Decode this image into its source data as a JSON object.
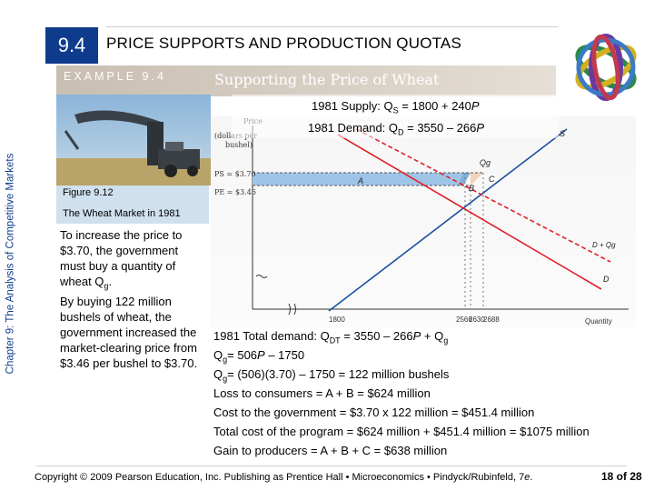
{
  "header": {
    "section": "9.4",
    "title": "PRICE SUPPORTS AND PRODUCTION QUOTAS",
    "example_label": "EXAMPLE 9.4",
    "example_title": "Supporting the Price of Wheat",
    "side_caption": "Chapter 9: The Analysis of Competitive Markets"
  },
  "equations": {
    "supply_prefix": "1981 Supply: Q",
    "supply_sub": "S",
    "supply_rest": " = 1800 + 240",
    "supply_var": "P",
    "demand_prefix": "1981 Demand: Q",
    "demand_sub": "D",
    "demand_rest": " = 3550 – 266",
    "demand_var": "P"
  },
  "figure": {
    "label": "Figure 9.12",
    "subtitle": "The Wheat Market in 1981"
  },
  "paragraphs": {
    "p1_main": "To increase the price to $3.70, the government must buy a quantity of wheat Q",
    "p1_sub": "g",
    "p1_end": ".",
    "p2": "By buying 122 million bushels of wheat, the government increased the market-clearing price from $3.46 per bushel to $3.70."
  },
  "calculations": {
    "l0_a": "1981 Total demand: Q",
    "l0_sub": "DT",
    "l0_b": " = 3550 – 266",
    "l0_var": "P",
    "l0_c": " + Q",
    "l0_sub2": "g",
    "l1_a": "Q",
    "l1_sub": "g",
    "l1_b": "= 506",
    "l1_var": "P",
    "l1_c": " – 1750",
    "l2_a": "Q",
    "l2_sub": "g",
    "l2_b": "= (506)(3.70) – 1750 = 122 million bushels",
    "l3": "Loss to consumers = A + B = $624 million",
    "l4": "Cost to the government = $3.70 x 122 million = $451.4 million",
    "l5": "Total cost of the program = $624 million + $451.4 million = $1075 million",
    "l6": "Gain to producers = A + B + C = $638 million"
  },
  "chart_data": {
    "type": "line",
    "title": "",
    "ylabel": "Price (dollars per bushel)",
    "xlabel": "Quantity",
    "y_ticks": [
      "PS = $3.70",
      "PE = $3.46"
    ],
    "x_ticks": [
      "1800",
      "2566",
      "2630",
      "2688"
    ],
    "series": [
      {
        "name": "S",
        "x": [
          1800,
          2688
        ],
        "y": [
          0,
          3.7
        ]
      },
      {
        "name": "D",
        "x": [
          2630,
          3550
        ],
        "y": [
          3.46,
          0
        ]
      },
      {
        "name": "D + Qg",
        "x": [
          2688,
          3672
        ],
        "y": [
          3.7,
          0
        ]
      }
    ],
    "annotations": [
      "A",
      "B",
      "C",
      "Qg",
      "S",
      "D + Qg",
      "D"
    ]
  },
  "footer": {
    "copyright_a": "Copyright © 2009 Pearson Education, Inc. Publishing as Prentice Hall • Microeconomics • Pindyck/Rubinfeld, 7",
    "copyright_e": "e",
    "copyright_end": ".",
    "page": "18 of 28"
  },
  "colors": {
    "accent": "#0f3b8c",
    "demand_line": "#e0202a",
    "supply_line": "#1a4fa0",
    "area_a": "#9ec5e8",
    "area_c": "#f2d2b8",
    "figure_box": "#cfe0ee"
  }
}
